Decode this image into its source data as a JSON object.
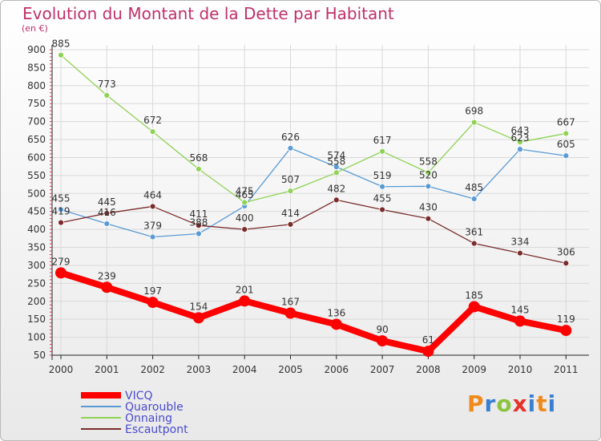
{
  "title": "Evolution du Montant de la Dette par Habitant",
  "unit_label": "(en €)",
  "logo_text": "Proxiti",
  "colors": {
    "title": "#c0306a",
    "axis": "#333333",
    "grid": "#d9d9d9",
    "label": "#333333"
  },
  "chart_data": {
    "type": "line",
    "title": "Evolution du Montant de la Dette par Habitant",
    "ylabel": "(en €)",
    "xlabel": "",
    "categories": [
      "2000",
      "2001",
      "2002",
      "2003",
      "2004",
      "2005",
      "2006",
      "2007",
      "2008",
      "2009",
      "2010",
      "2011"
    ],
    "ylim": [
      50,
      900
    ],
    "yticks": [
      50,
      100,
      150,
      200,
      250,
      300,
      350,
      400,
      450,
      500,
      550,
      600,
      650,
      700,
      750,
      800,
      850,
      900
    ],
    "grid": true,
    "legend_position": "bottom-left",
    "series": [
      {
        "name": "VICQ",
        "color": "#ff0000",
        "values": [
          279,
          239,
          197,
          154,
          201,
          167,
          136,
          90,
          61,
          185,
          145,
          119
        ]
      },
      {
        "name": "Quarouble",
        "color": "#5a9bd5",
        "values": [
          455,
          416,
          379,
          388,
          465,
          626,
          574,
          519,
          520,
          485,
          623,
          605
        ]
      },
      {
        "name": "Onnaing",
        "color": "#8fd255",
        "values": [
          885,
          773,
          672,
          568,
          475,
          507,
          558,
          617,
          558,
          698,
          643,
          667
        ]
      },
      {
        "name": "Escautpont",
        "color": "#7b2c2c",
        "values": [
          419,
          445,
          464,
          411,
          400,
          414,
          482,
          455,
          430,
          361,
          334,
          306
        ]
      }
    ],
    "labels": {
      "VICQ": [
        "279",
        "239",
        "197",
        "154",
        "201",
        "167",
        "136",
        "90",
        "61",
        "185",
        "145",
        "119"
      ],
      "Quarouble": [
        "455",
        "416",
        "379",
        "388",
        "465",
        "626",
        "574",
        "519",
        "520",
        "485",
        "623",
        "605"
      ],
      "Onnaing": [
        "885",
        "773",
        "672",
        "568",
        "475",
        "507",
        "558",
        "617",
        "558",
        "698",
        "643",
        "667"
      ],
      "Escautpont": [
        "419",
        "445",
        "464",
        "411",
        "400",
        "414",
        "482",
        "455",
        "430",
        "361",
        "334",
        "306"
      ]
    }
  }
}
